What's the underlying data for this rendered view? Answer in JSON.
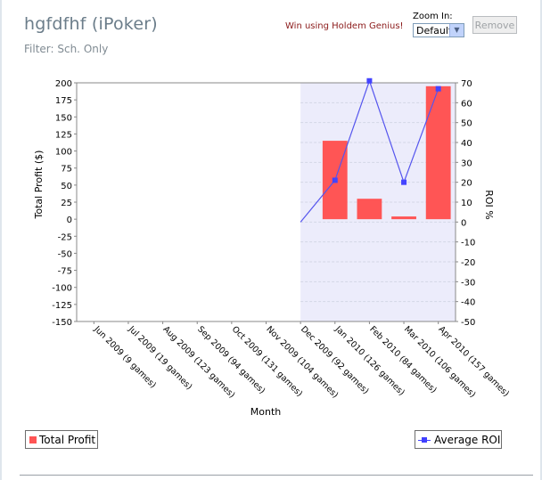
{
  "header": {
    "title": "hgfdfhf (iPoker)",
    "filter": "Filter: Sch. Only",
    "promo_link": "Win using Holdem Genius!",
    "zoom_label": "Zoom In:",
    "zoom_value": "Default",
    "remove_label": "Remove"
  },
  "colors": {
    "bar": "#ff5555",
    "line": "#5555ee",
    "marker": "#4444ff",
    "zoom_region": "#ececfb"
  },
  "chart_data": {
    "type": "bar",
    "xlabel": "Month",
    "ylabel": "Total Profit ($)",
    "y2label": "ROI %",
    "categories": [
      "Jun 2009 (9 games)",
      "Jul 2009 (19 games)",
      "Aug 2009 (123 games)",
      "Sep 2009 (94 games)",
      "Oct 2009 (131 games)",
      "Nov 2009 (104 games)",
      "Dec 2009 (92 games)",
      "Jan 2010 (126 games)",
      "Feb 2010 (84 games)",
      "Mar 2010 (106 games)",
      "Apr 2010 (157 games)"
    ],
    "ylim": [
      -150,
      200
    ],
    "yticks": [
      200,
      175,
      150,
      125,
      100,
      75,
      50,
      25,
      0,
      -25,
      -50,
      -75,
      -100,
      -125,
      -150
    ],
    "y2lim": [
      -50,
      70
    ],
    "y2ticks": [
      70,
      60,
      50,
      40,
      30,
      20,
      10,
      0,
      -10,
      -20,
      -30,
      -40,
      -50
    ],
    "highlighted_range": [
      "Dec 2009 (92 games)",
      "Apr 2010 (157 games)"
    ],
    "series": [
      {
        "name": "Total Profit",
        "type": "bar",
        "axis": "left",
        "values": [
          null,
          null,
          null,
          null,
          null,
          null,
          null,
          115,
          30,
          4,
          195
        ]
      },
      {
        "name": "Average ROI",
        "type": "line",
        "axis": "right",
        "values": [
          null,
          null,
          null,
          null,
          null,
          null,
          0,
          21,
          71,
          20,
          67
        ]
      }
    ],
    "legend": [
      {
        "name": "Total Profit",
        "position": "bottom-left"
      },
      {
        "name": "Average ROI",
        "position": "bottom-right"
      }
    ],
    "grid": true
  }
}
